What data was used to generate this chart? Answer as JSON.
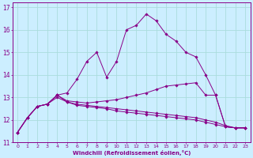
{
  "xlabel": "Windchill (Refroidissement éolien,°C)",
  "background_color": "#cceeff",
  "grid_color": "#aadddd",
  "line_color": "#880088",
  "xlim": [
    -0.5,
    23.5
  ],
  "ylim": [
    11,
    17.2
  ],
  "yticks": [
    11,
    12,
    13,
    14,
    15,
    16,
    17
  ],
  "xticks": [
    0,
    1,
    2,
    3,
    4,
    5,
    6,
    7,
    8,
    9,
    10,
    11,
    12,
    13,
    14,
    15,
    16,
    17,
    18,
    19,
    20,
    21,
    22,
    23
  ],
  "series": [
    {
      "x": [
        0,
        1,
        2,
        3,
        4,
        5,
        6,
        7,
        8,
        9,
        10,
        11,
        12,
        13,
        14,
        15,
        16,
        17,
        18,
        19,
        20,
        21,
        22,
        23
      ],
      "y": [
        11.45,
        12.1,
        12.6,
        12.7,
        13.1,
        13.2,
        13.8,
        14.6,
        15.0,
        13.9,
        14.6,
        16.0,
        16.2,
        16.7,
        16.4,
        15.8,
        15.5,
        15.0,
        14.8,
        14.0,
        13.1,
        11.7,
        11.65,
        11.65
      ]
    },
    {
      "x": [
        0,
        1,
        2,
        3,
        4,
        5,
        6,
        7,
        8,
        9,
        10,
        11,
        12,
        13,
        14,
        15,
        16,
        17,
        18,
        19,
        20,
        21,
        22,
        23
      ],
      "y": [
        11.45,
        12.1,
        12.6,
        12.7,
        13.1,
        12.85,
        12.8,
        12.75,
        12.8,
        12.85,
        12.9,
        13.0,
        13.1,
        13.2,
        13.35,
        13.5,
        13.55,
        13.6,
        13.65,
        13.1,
        13.1,
        11.7,
        11.65,
        11.65
      ]
    },
    {
      "x": [
        0,
        1,
        2,
        3,
        4,
        5,
        6,
        7,
        8,
        9,
        10,
        11,
        12,
        13,
        14,
        15,
        16,
        17,
        18,
        19,
        20,
        21,
        22,
        23
      ],
      "y": [
        11.45,
        12.1,
        12.6,
        12.7,
        13.0,
        12.8,
        12.7,
        12.65,
        12.6,
        12.55,
        12.5,
        12.45,
        12.4,
        12.35,
        12.3,
        12.25,
        12.2,
        12.15,
        12.1,
        12.0,
        11.9,
        11.75,
        11.65,
        11.65
      ]
    },
    {
      "x": [
        0,
        1,
        2,
        3,
        4,
        5,
        6,
        7,
        8,
        9,
        10,
        11,
        12,
        13,
        14,
        15,
        16,
        17,
        18,
        19,
        20,
        21,
        22,
        23
      ],
      "y": [
        11.45,
        12.1,
        12.6,
        12.7,
        13.1,
        12.8,
        12.65,
        12.6,
        12.55,
        12.5,
        12.4,
        12.35,
        12.3,
        12.25,
        12.2,
        12.15,
        12.1,
        12.05,
        12.0,
        11.9,
        11.8,
        11.7,
        11.65,
        11.65
      ]
    }
  ]
}
